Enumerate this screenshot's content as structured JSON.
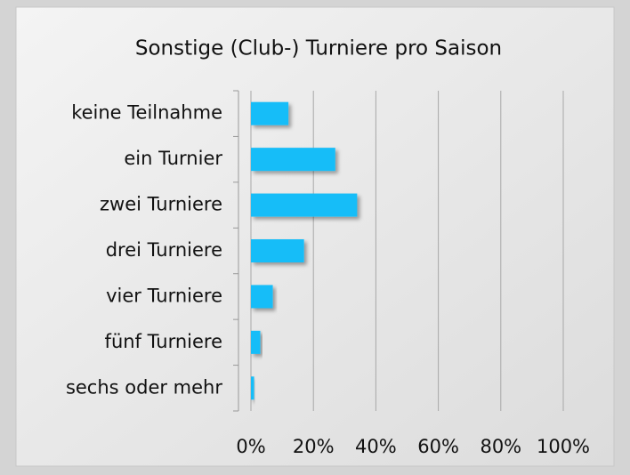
{
  "chart_data": {
    "type": "bar",
    "orientation": "horizontal",
    "title": "Sonstige (Club-) Turniere pro Saison",
    "categories": [
      "keine Teilnahme",
      "ein Turnier",
      "zwei Turniere",
      "drei Turniere",
      "vier Turniere",
      "fünf Turniere",
      "sechs oder mehr"
    ],
    "values": [
      12,
      27,
      34,
      17,
      7,
      3,
      1
    ],
    "color": "#13bdf8",
    "xlim": [
      0,
      100
    ],
    "xticks": [
      {
        "value": 0,
        "label": "0%"
      },
      {
        "value": 20,
        "label": "20%"
      },
      {
        "value": 40,
        "label": "40%"
      },
      {
        "value": 60,
        "label": "60%"
      },
      {
        "value": 80,
        "label": "80%"
      },
      {
        "value": 100,
        "label": "100%"
      }
    ],
    "grid": true
  }
}
